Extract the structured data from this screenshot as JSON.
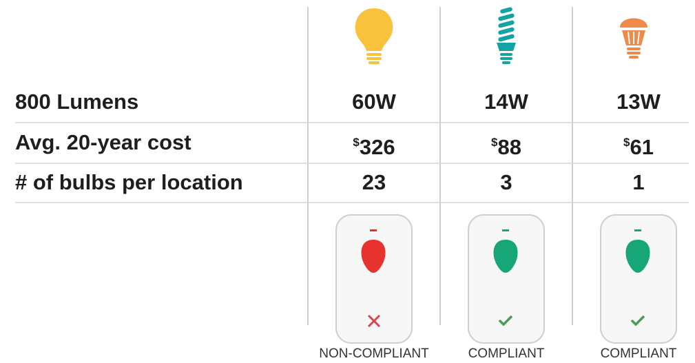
{
  "table": {
    "rows": [
      [
        "800 Lumens",
        "60W",
        "14W",
        "13W"
      ],
      [
        "Avg. 20-year cost",
        {
          "currency": "$",
          "amount": "326"
        },
        {
          "currency": "$",
          "amount": "88"
        },
        {
          "currency": "$",
          "amount": "61"
        }
      ],
      [
        "# of bulbs per location",
        "23",
        "3",
        "1"
      ]
    ],
    "status": [
      "NON-COMPLIANT",
      "COMPLIANT",
      "COMPLIANT"
    ]
  }
}
